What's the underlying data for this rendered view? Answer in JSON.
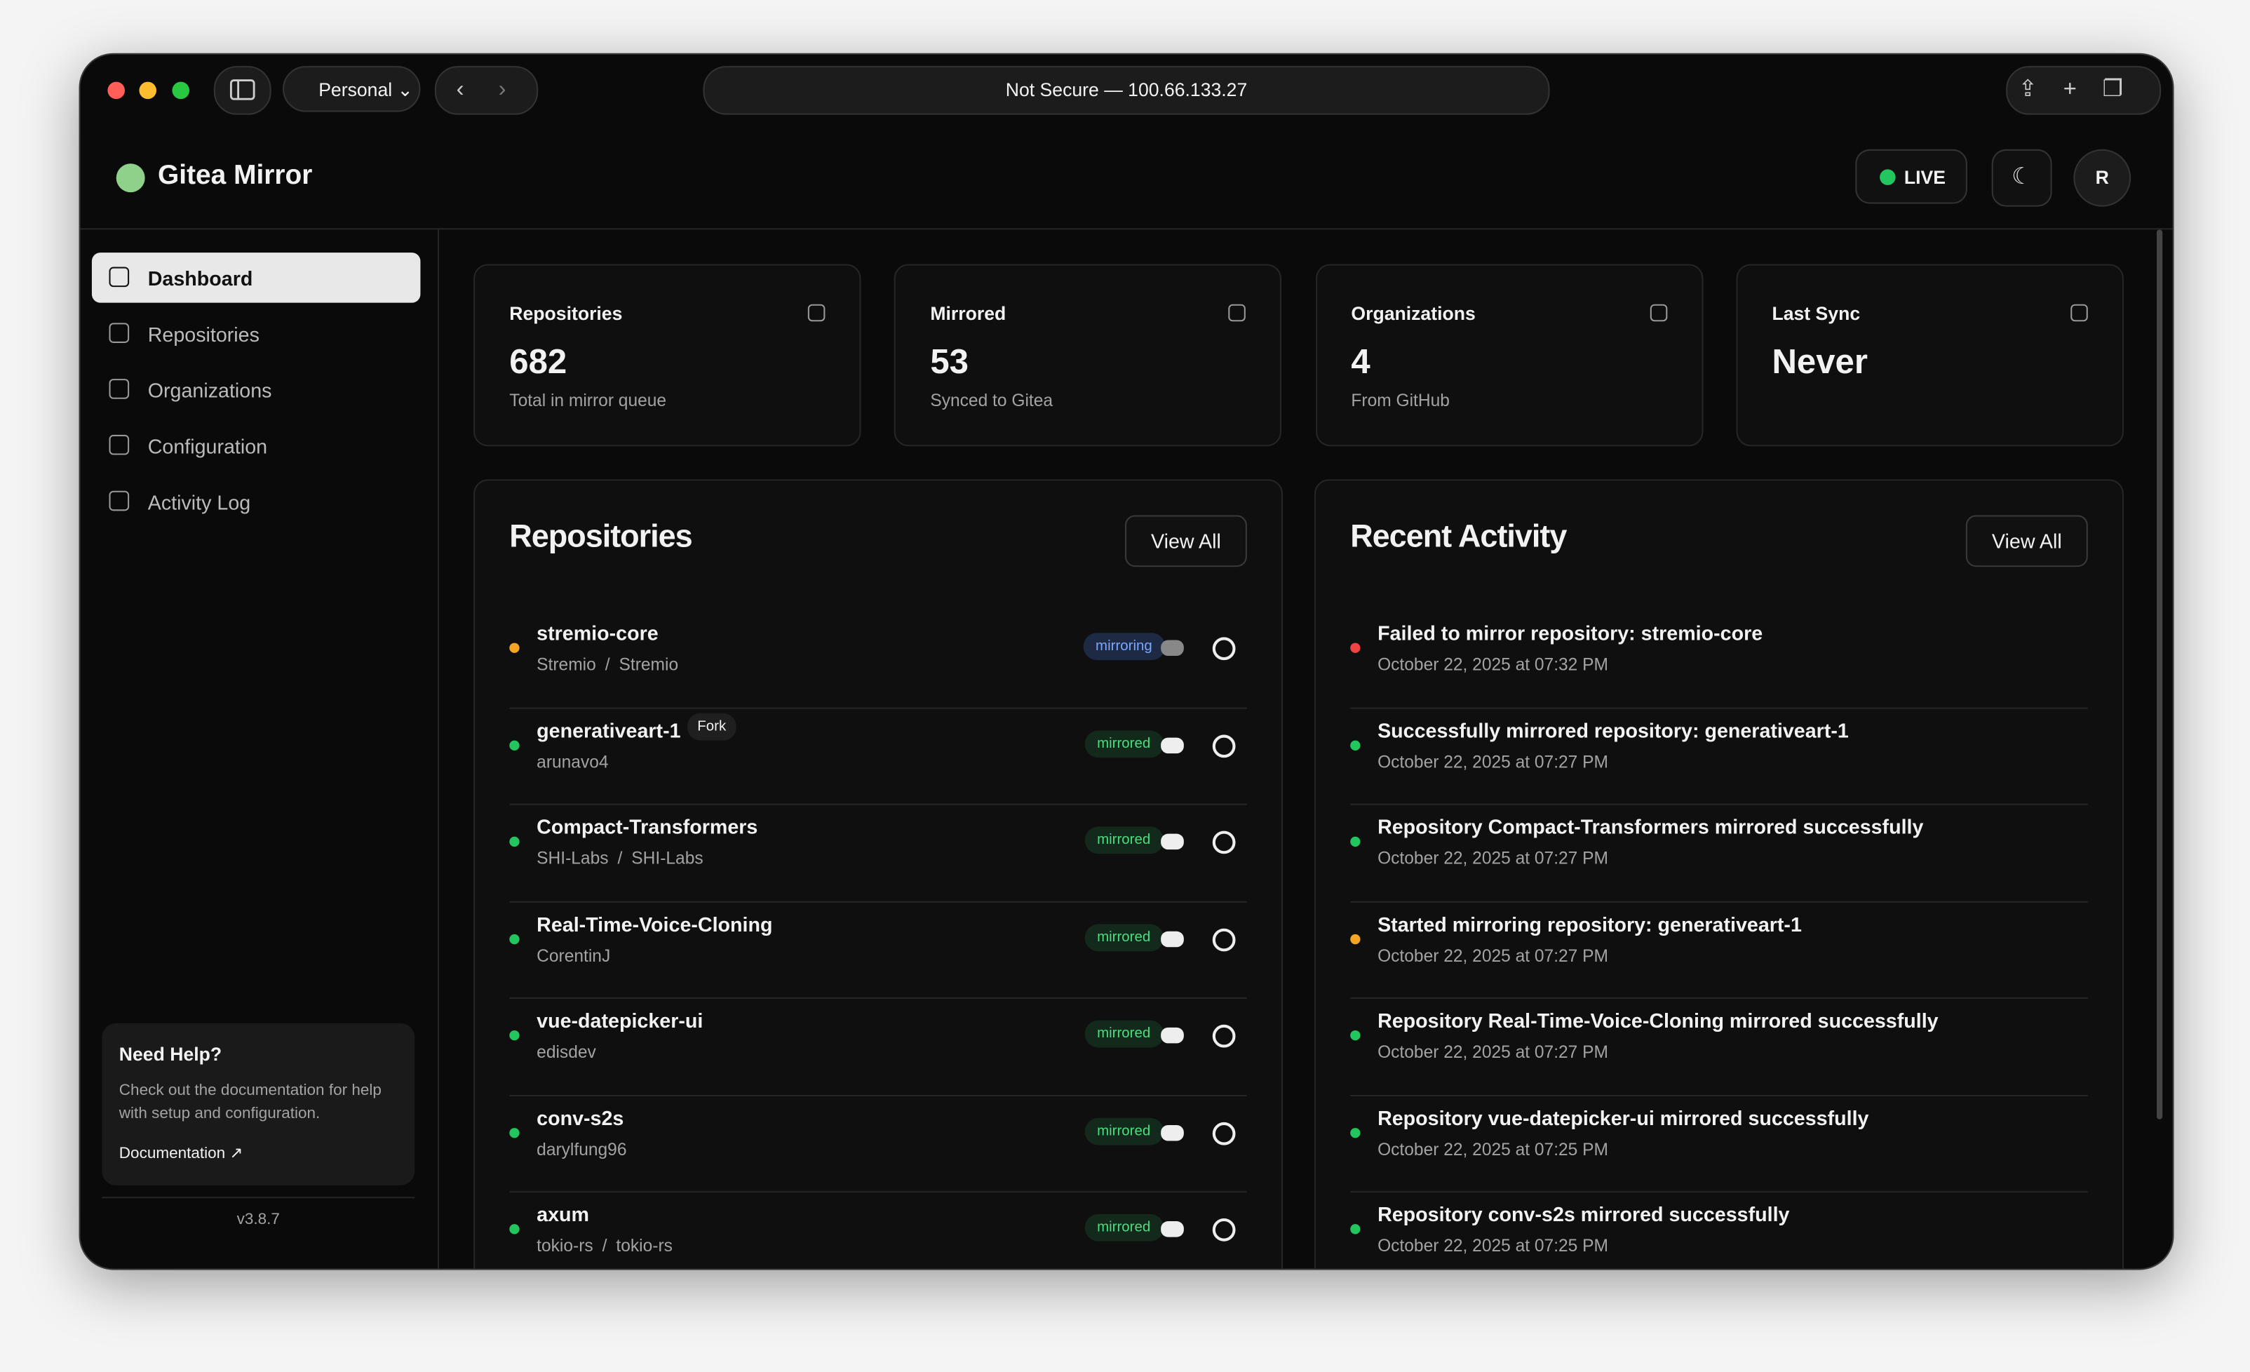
{
  "browser": {
    "profile": "Personal",
    "address": "Not Secure — 100.66.133.27"
  },
  "header": {
    "title": "Gitea Mirror",
    "live": "LIVE",
    "avatar": "R"
  },
  "sidebar": {
    "nav": [
      "Dashboard",
      "Repositories",
      "Organizations",
      "Configuration",
      "Activity Log"
    ],
    "help": {
      "title": "Need Help?",
      "text": "Check out the documentation for help with setup and configuration.",
      "link": "Documentation"
    },
    "version": "v3.8.7"
  },
  "stats": [
    {
      "label": "Repositories",
      "value": 682,
      "note": "Total in mirror queue"
    },
    {
      "label": "Mirrored",
      "value": 53,
      "note": "Synced to Gitea"
    },
    {
      "label": "Organizations",
      "value": 4,
      "note": "From GitHub"
    },
    {
      "label": "Last Sync",
      "value": "Never"
    }
  ],
  "repositories": {
    "title": "Repositories",
    "view_all": "View All",
    "items": [
      {
        "name": "stremio-core",
        "owner": [
          "Stremio",
          "Stremio"
        ],
        "status": "mirroring",
        "color": "#f5a524"
      },
      {
        "name": "generativeart-1",
        "tag": "Fork",
        "owner": [
          "arunavo4"
        ],
        "status": "mirrored",
        "color": "#22c55e"
      },
      {
        "name": "Compact-Transformers",
        "owner": [
          "SHI-Labs",
          "SHI-Labs"
        ],
        "status": "mirrored",
        "color": "#22c55e"
      },
      {
        "name": "Real-Time-Voice-Cloning",
        "owner": [
          "CorentinJ"
        ],
        "status": "mirrored",
        "color": "#22c55e"
      },
      {
        "name": "vue-datepicker-ui",
        "owner": [
          "edisdev"
        ],
        "status": "mirrored",
        "color": "#22c55e"
      },
      {
        "name": "conv-s2s",
        "owner": [
          "darylfung96"
        ],
        "status": "mirrored",
        "color": "#22c55e"
      },
      {
        "name": "axum",
        "owner": [
          "tokio-rs",
          "tokio-rs"
        ],
        "status": "mirrored",
        "color": "#22c55e"
      }
    ]
  },
  "activity": {
    "title": "Recent Activity",
    "view_all": "View All",
    "items": [
      {
        "message": "Failed to mirror repository: stremio-core",
        "time": "October 22, 2025 at 07:32 PM",
        "color": "#ef4444"
      },
      {
        "message": "Successfully mirrored repository: generativeart-1",
        "time": "October 22, 2025 at 07:27 PM",
        "color": "#22c55e"
      },
      {
        "message": "Repository Compact-Transformers mirrored successfully",
        "time": "October 22, 2025 at 07:27 PM",
        "color": "#22c55e"
      },
      {
        "message": "Started mirroring repository: generativeart-1",
        "time": "October 22, 2025 at 07:27 PM",
        "color": "#f5a524"
      },
      {
        "message": "Repository Real-Time-Voice-Cloning mirrored successfully",
        "time": "October 22, 2025 at 07:27 PM",
        "color": "#22c55e"
      },
      {
        "message": "Repository vue-datepicker-ui mirrored successfully",
        "time": "October 22, 2025 at 07:25 PM",
        "color": "#22c55e"
      },
      {
        "message": "Repository conv-s2s mirrored successfully",
        "time": "October 22, 2025 at 07:25 PM",
        "color": "#22c55e"
      }
    ]
  }
}
